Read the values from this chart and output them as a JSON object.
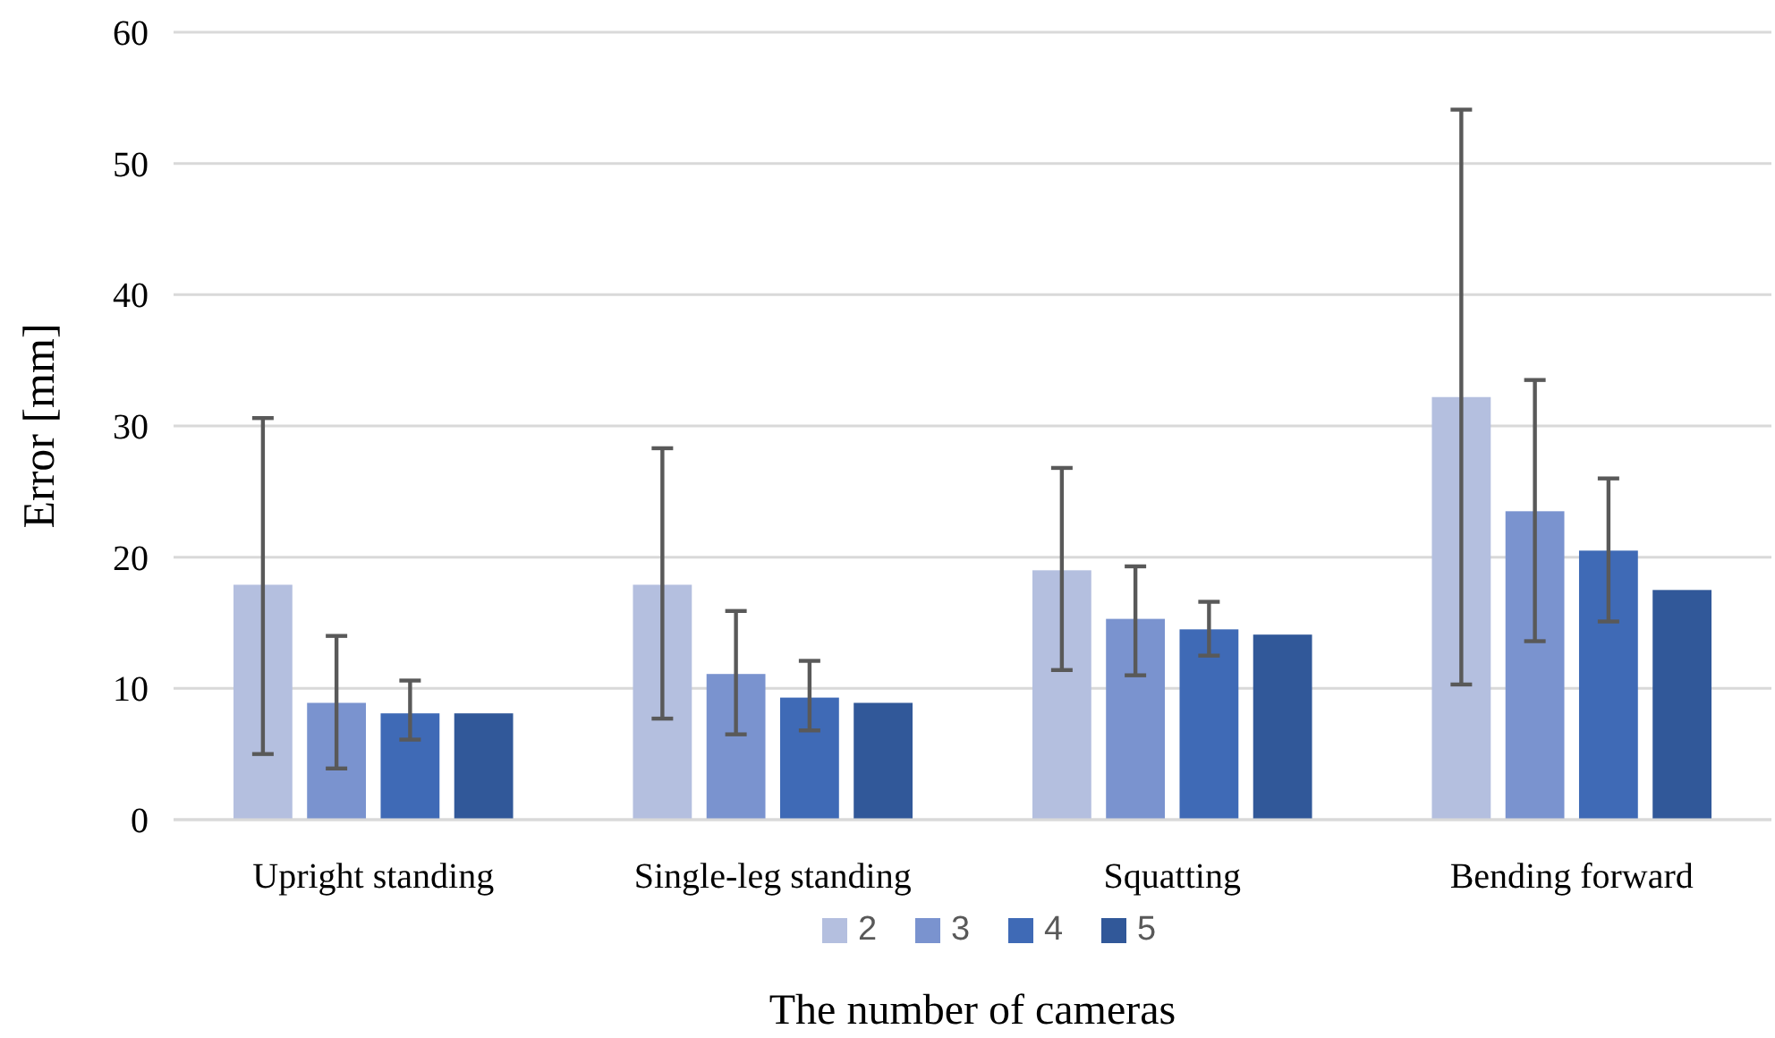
{
  "chart_data": {
    "type": "bar",
    "xlabel": "The number of cameras",
    "ylabel": "Error [mm]",
    "categories": [
      "Upright standing",
      "Single-leg standing",
      "Squatting",
      "Bending forward"
    ],
    "series": [
      {
        "name": "2",
        "color": "#b4bfdf",
        "values": [
          17.9,
          17.9,
          19.0,
          32.2
        ],
        "errors": [
          [
            5.0,
            30.6
          ],
          [
            7.7,
            28.3
          ],
          [
            11.4,
            26.8
          ],
          [
            10.3,
            54.1
          ]
        ]
      },
      {
        "name": "3",
        "color": "#7a93cf",
        "values": [
          8.9,
          11.1,
          15.3,
          23.5
        ],
        "errors": [
          [
            3.9,
            14.0
          ],
          [
            6.5,
            15.9
          ],
          [
            11.0,
            19.3
          ],
          [
            13.6,
            33.5
          ]
        ]
      },
      {
        "name": "4",
        "color": "#3f6ab6",
        "values": [
          8.1,
          9.3,
          14.5,
          20.5
        ],
        "errors": [
          [
            6.1,
            10.6
          ],
          [
            6.8,
            12.1
          ],
          [
            12.5,
            16.6
          ],
          [
            15.1,
            26.0
          ]
        ]
      },
      {
        "name": "5",
        "color": "#315899",
        "values": [
          8.1,
          8.9,
          14.1,
          17.5
        ]
      }
    ],
    "ylim": [
      0,
      60
    ],
    "yticks": [
      0,
      10,
      20,
      30,
      40,
      50,
      60
    ],
    "grid": "y",
    "legend": "bottom"
  }
}
